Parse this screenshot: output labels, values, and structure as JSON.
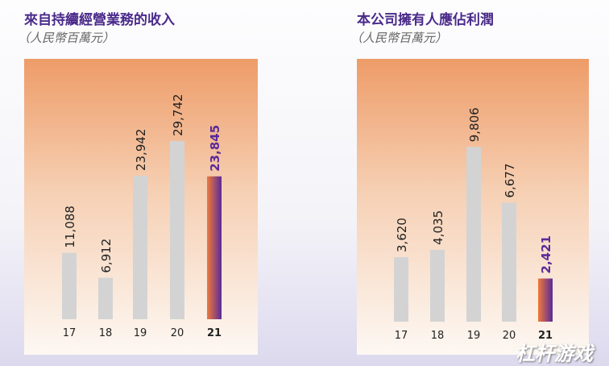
{
  "chart_data": [
    {
      "type": "bar",
      "title": "來自持續經營業務的收入",
      "subtitle": "（人民幣百萬元）",
      "categories": [
        "17",
        "18",
        "19",
        "20",
        "21"
      ],
      "values": [
        11088,
        6912,
        23942,
        29742,
        23845
      ],
      "labels": [
        "11,088",
        "6,912",
        "23,942",
        "29,742",
        "23,845"
      ],
      "highlight_index": 4,
      "ylim": [
        0,
        30000
      ]
    },
    {
      "type": "bar",
      "title": "本公司擁有人應佔利潤",
      "subtitle": "（人民幣百萬元）",
      "categories": [
        "17",
        "18",
        "19",
        "20",
        "21"
      ],
      "values": [
        3620,
        4035,
        9806,
        6677,
        2421
      ],
      "labels": [
        "3,620",
        "4,035",
        "9,806",
        "6,677",
        "2,421"
      ],
      "highlight_index": 4,
      "ylim": [
        0,
        10000
      ]
    }
  ],
  "colors": {
    "bar": "#d3d3d3",
    "highlight_start": "#f07a3a",
    "highlight_end": "#5a2a9a",
    "title": "#4a2a8a",
    "panel_top": "#ee9c68",
    "panel_bottom": "#fdf7f1"
  },
  "watermark": "杠杆游戏"
}
